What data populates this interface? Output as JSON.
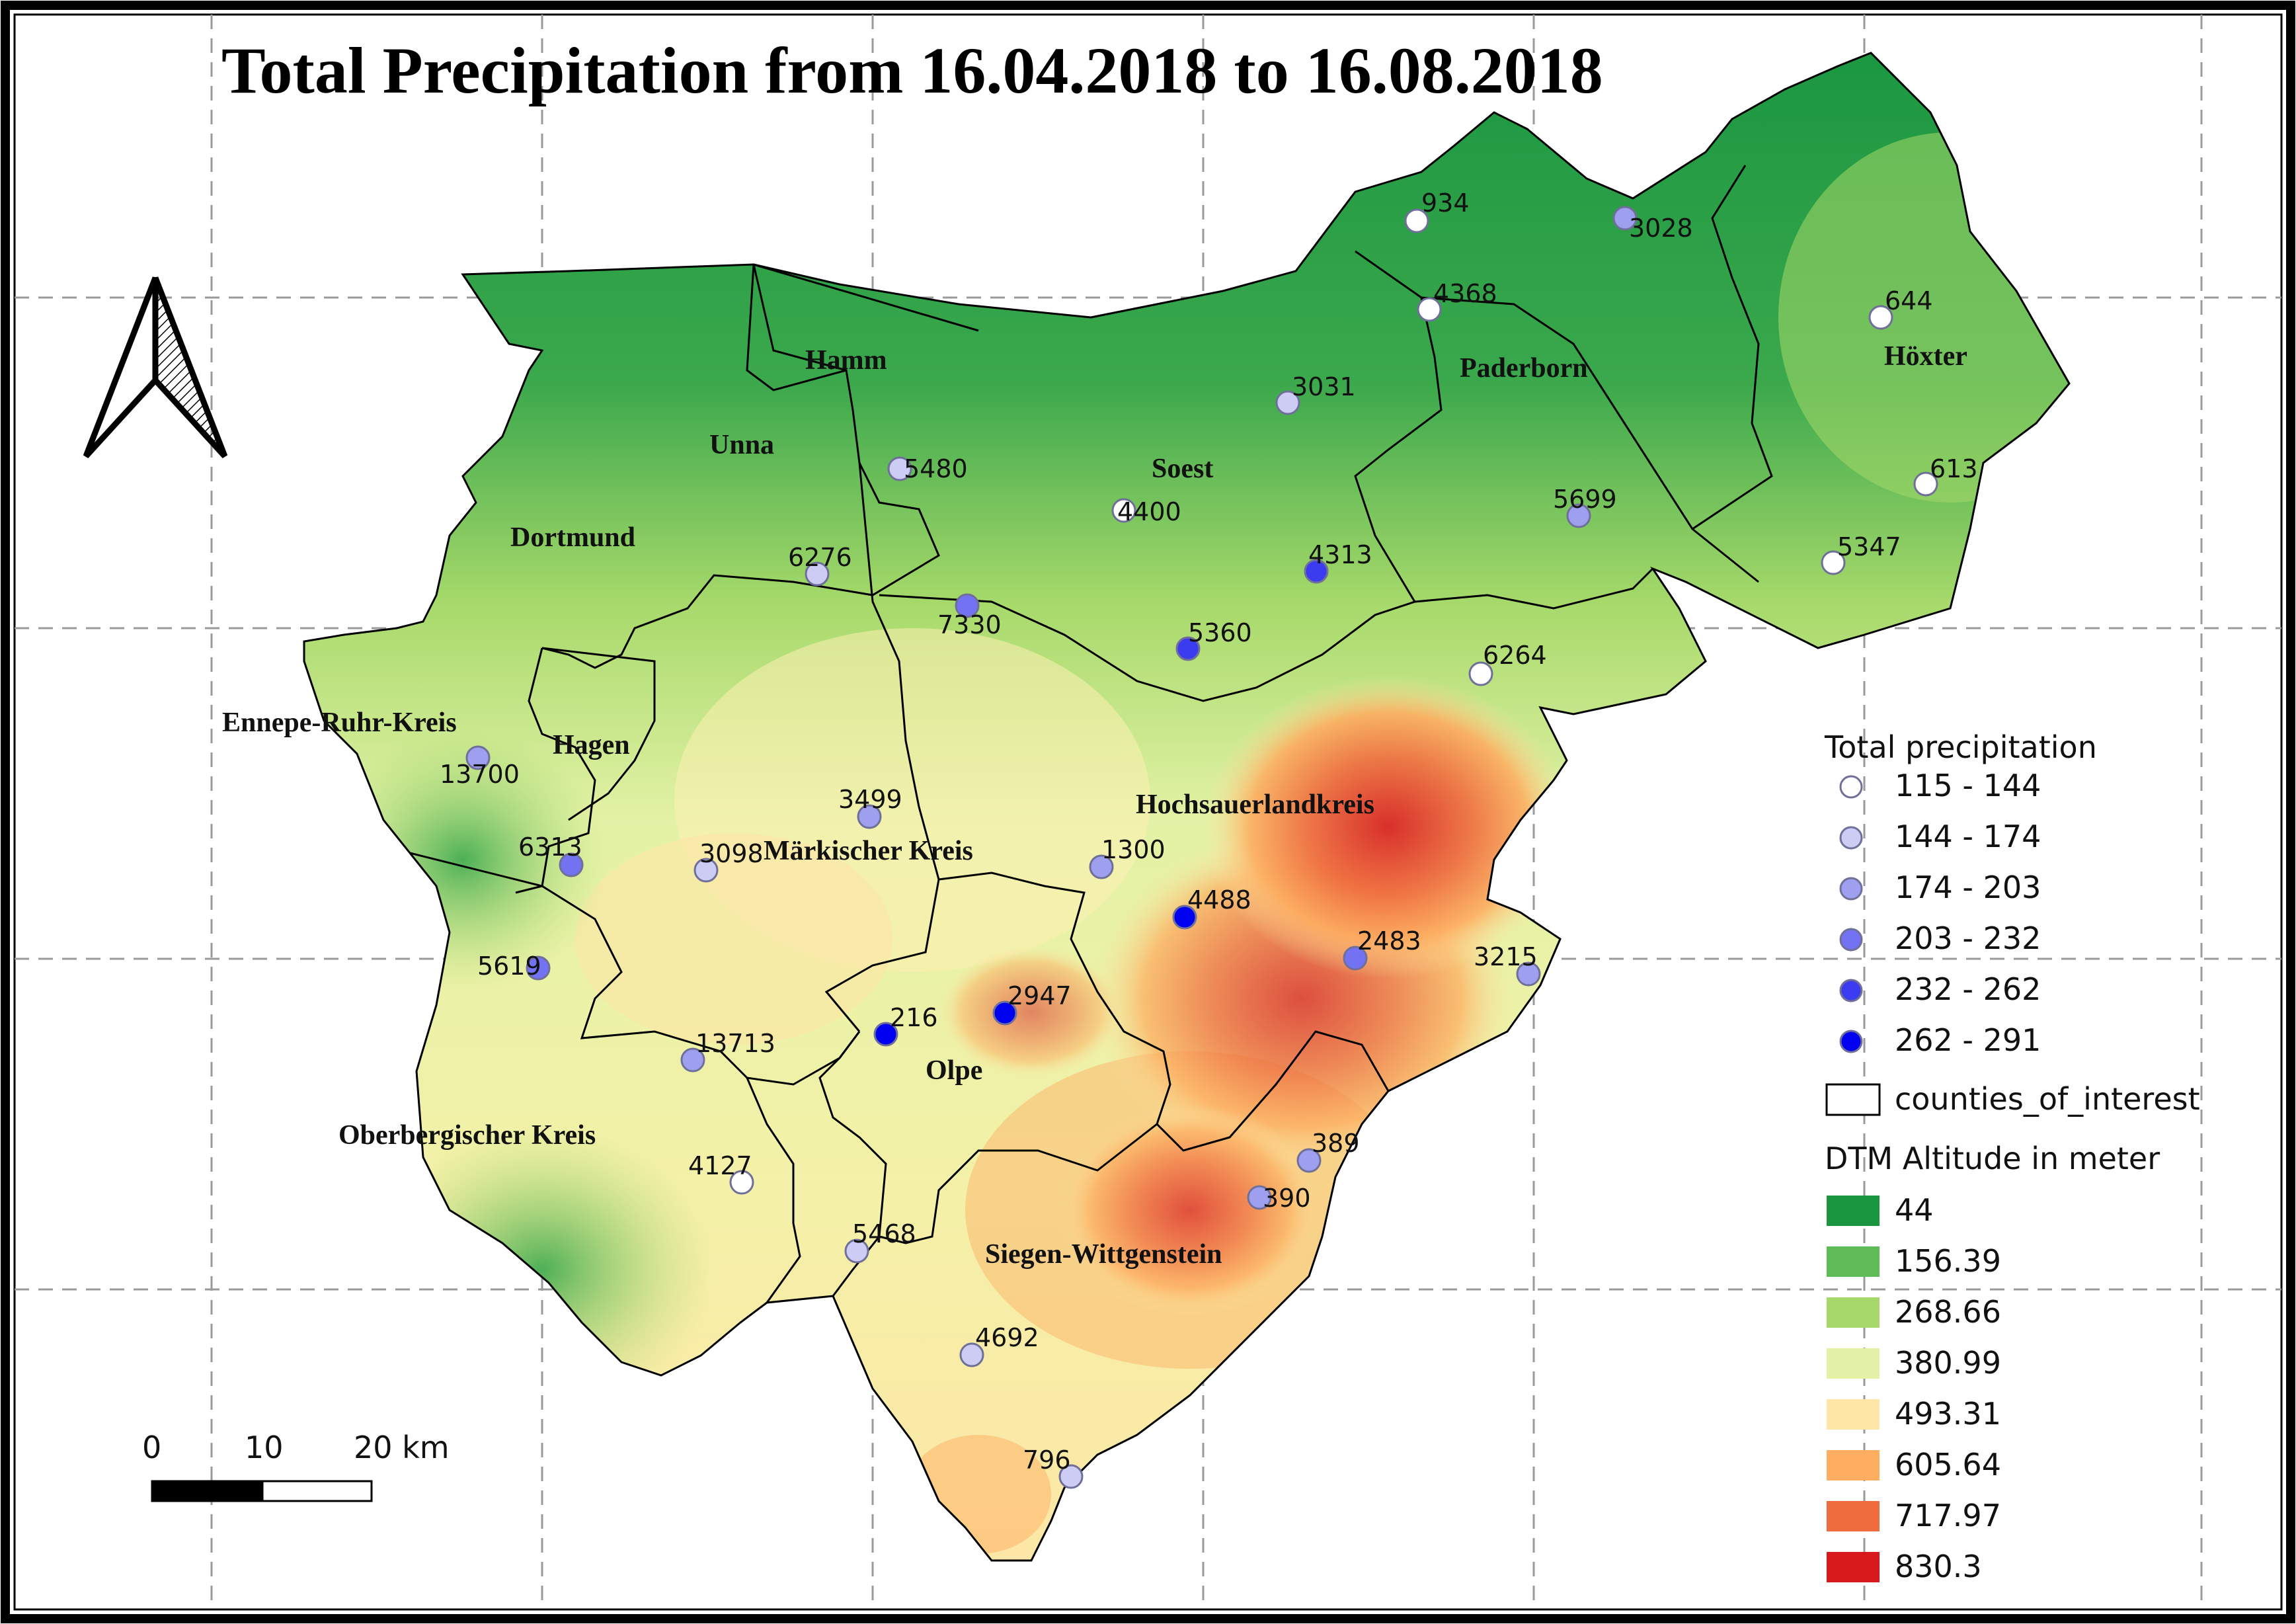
{
  "title": "Total Precipitation from 16.04.2018 to 16.08.2018",
  "north_arrow": {
    "icon": "north-arrow-icon"
  },
  "scale_bar": {
    "labels": [
      "0",
      "10",
      "20 km"
    ]
  },
  "counties": [
    {
      "id": "hamm",
      "name": "Hamm"
    },
    {
      "id": "unna",
      "name": "Unna"
    },
    {
      "id": "dortmund",
      "name": "Dortmund"
    },
    {
      "id": "soest",
      "name": "Soest"
    },
    {
      "id": "paderborn",
      "name": "Paderborn"
    },
    {
      "id": "hoexter",
      "name": "Höxter"
    },
    {
      "id": "ennepe-ruhr-kreis",
      "name": "Ennepe-Ruhr-Kreis"
    },
    {
      "id": "hagen",
      "name": "Hagen"
    },
    {
      "id": "maerkischer-kreis",
      "name": "Märkischer Kreis"
    },
    {
      "id": "hochsauerlandkreis",
      "name": "Hochsauerlandkreis"
    },
    {
      "id": "olpe",
      "name": "Olpe"
    },
    {
      "id": "oberbergischer-kreis",
      "name": "Oberbergischer Kreis"
    },
    {
      "id": "siegen-wittgenstein",
      "name": "Siegen-Wittgenstein"
    }
  ],
  "stations": [
    {
      "id": "934",
      "label": "934",
      "class": 0
    },
    {
      "id": "3028",
      "label": "3028",
      "class": 2
    },
    {
      "id": "4368",
      "label": "4368",
      "class": 0
    },
    {
      "id": "644",
      "label": "644",
      "class": 0
    },
    {
      "id": "3031",
      "label": "3031",
      "class": 1
    },
    {
      "id": "5480",
      "label": "5480",
      "class": 1
    },
    {
      "id": "4400",
      "label": "4400",
      "class": 0
    },
    {
      "id": "613",
      "label": "613",
      "class": 0
    },
    {
      "id": "5699",
      "label": "5699",
      "class": 2
    },
    {
      "id": "6276",
      "label": "6276",
      "class": 1
    },
    {
      "id": "4313",
      "label": "4313",
      "class": 4
    },
    {
      "id": "5347",
      "label": "5347",
      "class": 0
    },
    {
      "id": "7330",
      "label": "7330",
      "class": 3
    },
    {
      "id": "5360",
      "label": "5360",
      "class": 4
    },
    {
      "id": "6264",
      "label": "6264",
      "class": 0
    },
    {
      "id": "13700",
      "label": "13700",
      "class": 2
    },
    {
      "id": "3499",
      "label": "3499",
      "class": 2
    },
    {
      "id": "6313",
      "label": "6313",
      "class": 3
    },
    {
      "id": "3098",
      "label": "3098",
      "class": 1
    },
    {
      "id": "1300",
      "label": "1300",
      "class": 2
    },
    {
      "id": "4488",
      "label": "4488",
      "class": 5
    },
    {
      "id": "2483",
      "label": "2483",
      "class": 3
    },
    {
      "id": "3215",
      "label": "3215",
      "class": 2
    },
    {
      "id": "5619",
      "label": "5619",
      "class": 3
    },
    {
      "id": "216",
      "label": "216",
      "class": 5
    },
    {
      "id": "2947",
      "label": "2947",
      "class": 5
    },
    {
      "id": "13713",
      "label": "13713",
      "class": 2
    },
    {
      "id": "389",
      "label": "389",
      "class": 2
    },
    {
      "id": "4127",
      "label": "4127",
      "class": 0
    },
    {
      "id": "390",
      "label": "390",
      "class": 2
    },
    {
      "id": "5468",
      "label": "5468",
      "class": 1
    },
    {
      "id": "4692",
      "label": "4692",
      "class": 1
    },
    {
      "id": "796",
      "label": "796",
      "class": 1
    }
  ],
  "legend": {
    "precip_title": "Total precipitation",
    "precip_classes": [
      {
        "label": "115 - 144",
        "color": "#ffffff"
      },
      {
        "label": "144 - 174",
        "color": "#ccccf5"
      },
      {
        "label": "174 - 203",
        "color": "#9f9ff0"
      },
      {
        "label": "203 - 232",
        "color": "#7272f2"
      },
      {
        "label": "232 - 262",
        "color": "#3b3bf0"
      },
      {
        "label": "262 - 291",
        "color": "#0000f0"
      }
    ],
    "counties_label": "counties_of_interest",
    "dtm_title": "DTM Altitude in meter",
    "dtm_classes": [
      {
        "label": "44",
        "color": "#1a9641"
      },
      {
        "label": "156.39",
        "color": "#5fbb58"
      },
      {
        "label": "268.66",
        "color": "#a6d96a"
      },
      {
        "label": "380.99",
        "color": "#e3f2a6"
      },
      {
        "label": "493.31",
        "color": "#fee6a6"
      },
      {
        "label": "605.64",
        "color": "#fdae61"
      },
      {
        "label": "717.97",
        "color": "#ef6c3e"
      },
      {
        "label": "830.3",
        "color": "#d7191c"
      }
    ]
  }
}
